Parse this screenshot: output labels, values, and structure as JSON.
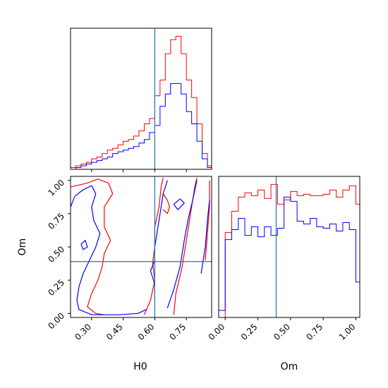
{
  "chart_data": {
    "type": "corner",
    "colors": {
      "red": "#ff0000",
      "blue": "#0000ff",
      "truth": "#1f77b4"
    },
    "truth": {
      "H0": 0.6,
      "Om": 0.39
    },
    "panels": [
      {
        "id": "hist-H0",
        "type": "histogram",
        "variable": "H0",
        "xlim": [
          0.2,
          0.87
        ],
        "bin_edges": [
          0.2,
          0.225,
          0.25,
          0.275,
          0.3,
          0.325,
          0.35,
          0.375,
          0.4,
          0.425,
          0.45,
          0.475,
          0.5,
          0.525,
          0.55,
          0.575,
          0.6,
          0.625,
          0.65,
          0.675,
          0.7,
          0.725,
          0.75,
          0.775,
          0.8,
          0.825,
          0.85,
          0.87
        ],
        "series": [
          {
            "name": "",
            "color": "red",
            "counts": [
              1,
              2,
              3,
              4,
              6,
              7,
              9,
              11,
              12,
              14,
              16,
              17,
              19,
              22,
              26,
              29,
              42,
              51,
              66,
              74,
              76,
              66,
              51,
              41,
              26,
              9,
              2
            ]
          },
          {
            "name": "",
            "color": "blue",
            "counts": [
              0,
              1,
              2,
              3,
              4,
              5,
              6,
              7,
              9,
              10,
              11,
              12,
              13,
              15,
              17,
              21,
              25,
              36,
              43,
              49,
              49,
              43,
              33,
              26,
              16,
              6,
              1
            ]
          }
        ]
      },
      {
        "id": "scatter-H0-Om",
        "type": "contour",
        "xvar": "H0",
        "yvar": "Om",
        "xlim": [
          0.2,
          0.87
        ],
        "ylim": [
          -0.03,
          1.03
        ],
        "xlabel": "H0",
        "ylabel": "Om",
        "xticks": [
          "0.30",
          "0.45",
          "0.60",
          "0.75"
        ],
        "yticks": [
          "0.00",
          "0.25",
          "0.50",
          "0.75",
          "1.00"
        ],
        "series": [
          {
            "name": "",
            "color": "red",
            "contours": [
              [
                [
                  0.2,
                  0.95
                ],
                [
                  0.28,
                  0.98
                ],
                [
                  0.33,
                  1.01
                ],
                [
                  0.38,
                  0.98
                ],
                [
                  0.4,
                  0.9
                ],
                [
                  0.36,
                  0.8
                ],
                [
                  0.36,
                  0.65
                ],
                [
                  0.39,
                  0.55
                ],
                [
                  0.36,
                  0.45
                ],
                [
                  0.35,
                  0.35
                ],
                [
                  0.33,
                  0.25
                ],
                [
                  0.3,
                  0.15
                ],
                [
                  0.28,
                  0.05
                ],
                [
                  0.32,
                  0.0
                ],
                [
                  0.36,
                  -0.01
                ]
              ],
              [
                [
                  0.55,
                  -0.01
                ],
                [
                  0.58,
                  0.1
                ],
                [
                  0.6,
                  0.25
                ],
                [
                  0.59,
                  0.38
                ],
                [
                  0.6,
                  0.5
                ],
                [
                  0.6,
                  0.65
                ],
                [
                  0.62,
                  0.8
                ],
                [
                  0.63,
                  0.95
                ],
                [
                  0.64,
                  1.02
                ]
              ],
              [
                [
                  0.69,
                  -0.01
                ],
                [
                  0.7,
                  0.15
                ],
                [
                  0.73,
                  0.35
                ],
                [
                  0.75,
                  0.55
                ],
                [
                  0.77,
                  0.75
                ],
                [
                  0.79,
                  0.95
                ],
                [
                  0.8,
                  1.02
                ]
              ],
              [
                [
                  0.64,
                  0.9
                ],
                [
                  0.66,
                  0.85
                ],
                [
                  0.67,
                  0.8
                ],
                [
                  0.66,
                  0.75
                ],
                [
                  0.64,
                  0.78
                ]
              ],
              [
                [
                  0.84,
                  0.4
                ],
                [
                  0.85,
                  0.6
                ],
                [
                  0.86,
                  0.8
                ],
                [
                  0.86,
                  1.0
                ]
              ]
            ]
          },
          {
            "name": "",
            "color": "blue",
            "contours": [
              [
                [
                  0.2,
                  0.8
                ],
                [
                  0.22,
                  0.88
                ],
                [
                  0.26,
                  0.93
                ],
                [
                  0.3,
                  0.96
                ],
                [
                  0.32,
                  0.9
                ],
                [
                  0.3,
                  0.8
                ],
                [
                  0.31,
                  0.7
                ],
                [
                  0.34,
                  0.6
                ],
                [
                  0.32,
                  0.5
                ],
                [
                  0.29,
                  0.4
                ],
                [
                  0.26,
                  0.3
                ],
                [
                  0.24,
                  0.2
                ],
                [
                  0.23,
                  0.1
                ],
                [
                  0.24,
                  0.03
                ],
                [
                  0.3,
                  -0.01
                ],
                [
                  0.43,
                  -0.01
                ],
                [
                  0.52,
                  0.0
                ],
                [
                  0.56,
                  0.03
                ]
              ],
              [
                [
                  0.6,
                  0.1
                ],
                [
                  0.6,
                  0.22
                ],
                [
                  0.58,
                  0.32
                ],
                [
                  0.6,
                  0.4
                ],
                [
                  0.6,
                  0.5
                ],
                [
                  0.61,
                  0.6
                ],
                [
                  0.62,
                  0.7
                ],
                [
                  0.63,
                  0.8
                ],
                [
                  0.64,
                  0.9
                ],
                [
                  0.66,
                  1.0
                ]
              ],
              [
                [
                  0.66,
                  0.04
                ],
                [
                  0.69,
                  0.18
                ],
                [
                  0.72,
                  0.35
                ],
                [
                  0.74,
                  0.55
                ],
                [
                  0.76,
                  0.72
                ],
                [
                  0.78,
                  0.85
                ],
                [
                  0.8,
                  1.0
                ]
              ],
              [
                [
                  0.69,
                  0.82
                ],
                [
                  0.72,
                  0.86
                ],
                [
                  0.74,
                  0.83
                ],
                [
                  0.71,
                  0.78
                ],
                [
                  0.69,
                  0.82
                ]
              ],
              [
                [
                  0.82,
                  0.3
                ],
                [
                  0.84,
                  0.5
                ],
                [
                  0.85,
                  0.7
                ],
                [
                  0.86,
                  0.85
                ]
              ],
              [
                [
                  0.25,
                  0.52
                ],
                [
                  0.27,
                  0.55
                ],
                [
                  0.28,
                  0.5
                ],
                [
                  0.26,
                  0.48
                ],
                [
                  0.25,
                  0.52
                ]
              ]
            ]
          }
        ]
      },
      {
        "id": "hist-Om",
        "type": "histogram",
        "variable": "Om",
        "xlim": [
          -0.05,
          1.03
        ],
        "xlabel": "Om",
        "xticks": [
          "0.00",
          "0.25",
          "0.50",
          "0.75",
          "1.00"
        ],
        "bin_edges": [
          -0.05,
          0.0,
          0.05,
          0.1,
          0.15,
          0.2,
          0.25,
          0.3,
          0.35,
          0.4,
          0.45,
          0.5,
          0.55,
          0.6,
          0.65,
          0.7,
          0.75,
          0.8,
          0.85,
          0.9,
          0.95,
          1.0,
          1.03
        ],
        "series": [
          {
            "name": "",
            "color": "red",
            "counts": [
              0,
              60,
              75,
              85,
              88,
              86,
              90,
              84,
              94,
              80,
              83,
              89,
              86,
              87,
              86,
              86,
              87,
              90,
              85,
              90,
              93,
              80
            ]
          },
          {
            "name": "",
            "color": "blue",
            "counts": [
              5,
              55,
              62,
              70,
              58,
              64,
              57,
              64,
              58,
              63,
              85,
              82,
              68,
              66,
              70,
              64,
              63,
              66,
              61,
              67,
              62,
              25
            ]
          }
        ]
      }
    ]
  }
}
